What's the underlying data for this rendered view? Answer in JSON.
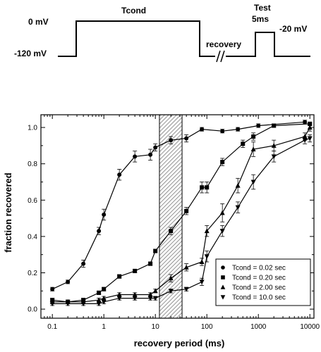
{
  "protocol": {
    "labels": {
      "holding": "-120 mV",
      "cond_voltage": "0 mV",
      "tcond": "Tcond",
      "recovery": "recovery",
      "test": "Test",
      "test_duration": "5ms",
      "test_voltage": "-20 mV"
    }
  },
  "chart_data": {
    "type": "scatter",
    "xlabel": "recovery period (ms)",
    "ylabel": "fraction recovered",
    "xscale": "log",
    "xlim": [
      0.06,
      12000
    ],
    "ylim": [
      -0.05,
      1.07
    ],
    "xticks": [
      {
        "value": 0.1,
        "label": "0.1"
      },
      {
        "value": 1,
        "label": "1"
      },
      {
        "value": 10,
        "label": "10"
      },
      {
        "value": 100,
        "label": "100"
      },
      {
        "value": 1000,
        "label": "1000"
      },
      {
        "value": 10000,
        "label": "10000"
      }
    ],
    "yticks": [
      {
        "value": 0.0,
        "label": "0.0"
      },
      {
        "value": 0.2,
        "label": "0.2"
      },
      {
        "value": 0.4,
        "label": "0.4"
      },
      {
        "value": 0.6,
        "label": "0.6"
      },
      {
        "value": 0.8,
        "label": "0.8"
      },
      {
        "value": 1.0,
        "label": "1.0"
      }
    ],
    "shaded_region": {
      "x": [
        12,
        33
      ]
    },
    "grid": false,
    "legend_position": "bottom-right",
    "series": [
      {
        "name": "Tcond = 0.02 sec",
        "marker": "circle",
        "points": [
          {
            "x": 0.1,
            "y": 0.11,
            "err": 0.01
          },
          {
            "x": 0.2,
            "y": 0.15,
            "err": 0.01
          },
          {
            "x": 0.4,
            "y": 0.25,
            "err": 0.02
          },
          {
            "x": 0.8,
            "y": 0.43,
            "err": 0.02
          },
          {
            "x": 1,
            "y": 0.52,
            "err": 0.03
          },
          {
            "x": 2,
            "y": 0.74,
            "err": 0.03
          },
          {
            "x": 4,
            "y": 0.84,
            "err": 0.03
          },
          {
            "x": 8,
            "y": 0.85,
            "err": 0.03
          },
          {
            "x": 10,
            "y": 0.89,
            "err": 0.02
          },
          {
            "x": 20,
            "y": 0.93,
            "err": 0.02
          },
          {
            "x": 40,
            "y": 0.94,
            "err": 0.02
          },
          {
            "x": 80,
            "y": 0.99,
            "err": 0.01
          },
          {
            "x": 200,
            "y": 0.98,
            "err": 0.01
          },
          {
            "x": 400,
            "y": 0.99,
            "err": 0.01
          },
          {
            "x": 1000,
            "y": 1.01,
            "err": 0.01
          },
          {
            "x": 8000,
            "y": 1.03,
            "err": 0.01
          }
        ]
      },
      {
        "name": "Tcond = 0.20 sec",
        "marker": "square",
        "points": [
          {
            "x": 0.1,
            "y": 0.05,
            "err": 0.01
          },
          {
            "x": 0.2,
            "y": 0.04,
            "err": 0.01
          },
          {
            "x": 0.4,
            "y": 0.05,
            "err": 0.01
          },
          {
            "x": 0.8,
            "y": 0.09,
            "err": 0.01
          },
          {
            "x": 1,
            "y": 0.11,
            "err": 0.01
          },
          {
            "x": 2,
            "y": 0.18,
            "err": 0.01
          },
          {
            "x": 4,
            "y": 0.21,
            "err": 0.01
          },
          {
            "x": 8,
            "y": 0.25,
            "err": 0.01
          },
          {
            "x": 10,
            "y": 0.32,
            "err": 0.01
          },
          {
            "x": 20,
            "y": 0.43,
            "err": 0.02
          },
          {
            "x": 40,
            "y": 0.54,
            "err": 0.02
          },
          {
            "x": 80,
            "y": 0.67,
            "err": 0.03
          },
          {
            "x": 100,
            "y": 0.67,
            "err": 0.03
          },
          {
            "x": 200,
            "y": 0.81,
            "err": 0.02
          },
          {
            "x": 500,
            "y": 0.91,
            "err": 0.02
          },
          {
            "x": 800,
            "y": 0.95,
            "err": 0.02
          },
          {
            "x": 2000,
            "y": 1.01,
            "err": 0.01
          },
          {
            "x": 10000,
            "y": 1.02,
            "err": 0.01
          }
        ]
      },
      {
        "name": "Tcond = 2.00 sec",
        "marker": "triangle-up",
        "points": [
          {
            "x": 0.1,
            "y": 0.04,
            "err": 0.01
          },
          {
            "x": 0.2,
            "y": 0.04,
            "err": 0.01
          },
          {
            "x": 0.4,
            "y": 0.04,
            "err": 0.01
          },
          {
            "x": 0.8,
            "y": 0.05,
            "err": 0.01
          },
          {
            "x": 1,
            "y": 0.06,
            "err": 0.01
          },
          {
            "x": 2,
            "y": 0.08,
            "err": 0.01
          },
          {
            "x": 4,
            "y": 0.08,
            "err": 0.01
          },
          {
            "x": 8,
            "y": 0.08,
            "err": 0.01
          },
          {
            "x": 10,
            "y": 0.1,
            "err": 0.01
          },
          {
            "x": 20,
            "y": 0.17,
            "err": 0.02
          },
          {
            "x": 40,
            "y": 0.23,
            "err": 0.02
          },
          {
            "x": 80,
            "y": 0.26,
            "err": 0.02
          },
          {
            "x": 100,
            "y": 0.43,
            "err": 0.03
          },
          {
            "x": 200,
            "y": 0.53,
            "err": 0.05
          },
          {
            "x": 400,
            "y": 0.68,
            "err": 0.04
          },
          {
            "x": 800,
            "y": 0.88,
            "err": 0.04
          },
          {
            "x": 2000,
            "y": 0.9,
            "err": 0.03
          },
          {
            "x": 8000,
            "y": 0.95,
            "err": 0.02
          },
          {
            "x": 10000,
            "y": 1.0,
            "err": 0.02
          }
        ]
      },
      {
        "name": "Tcond = 10.0 sec",
        "marker": "triangle-down",
        "points": [
          {
            "x": 0.1,
            "y": 0.03,
            "err": 0.01
          },
          {
            "x": 0.2,
            "y": 0.03,
            "err": 0.01
          },
          {
            "x": 0.4,
            "y": 0.03,
            "err": 0.01
          },
          {
            "x": 0.8,
            "y": 0.03,
            "err": 0.01
          },
          {
            "x": 1,
            "y": 0.04,
            "err": 0.01
          },
          {
            "x": 2,
            "y": 0.06,
            "err": 0.01
          },
          {
            "x": 4,
            "y": 0.06,
            "err": 0.01
          },
          {
            "x": 8,
            "y": 0.06,
            "err": 0.01
          },
          {
            "x": 10,
            "y": 0.06,
            "err": 0.01
          },
          {
            "x": 20,
            "y": 0.1,
            "err": 0.01
          },
          {
            "x": 40,
            "y": 0.11,
            "err": 0.01
          },
          {
            "x": 80,
            "y": 0.15,
            "err": 0.02
          },
          {
            "x": 100,
            "y": 0.29,
            "err": 0.03
          },
          {
            "x": 200,
            "y": 0.43,
            "err": 0.03
          },
          {
            "x": 400,
            "y": 0.56,
            "err": 0.03
          },
          {
            "x": 800,
            "y": 0.7,
            "err": 0.04
          },
          {
            "x": 2000,
            "y": 0.84,
            "err": 0.03
          },
          {
            "x": 8000,
            "y": 0.93,
            "err": 0.02
          },
          {
            "x": 10000,
            "y": 0.94,
            "err": 0.02
          }
        ]
      }
    ]
  }
}
